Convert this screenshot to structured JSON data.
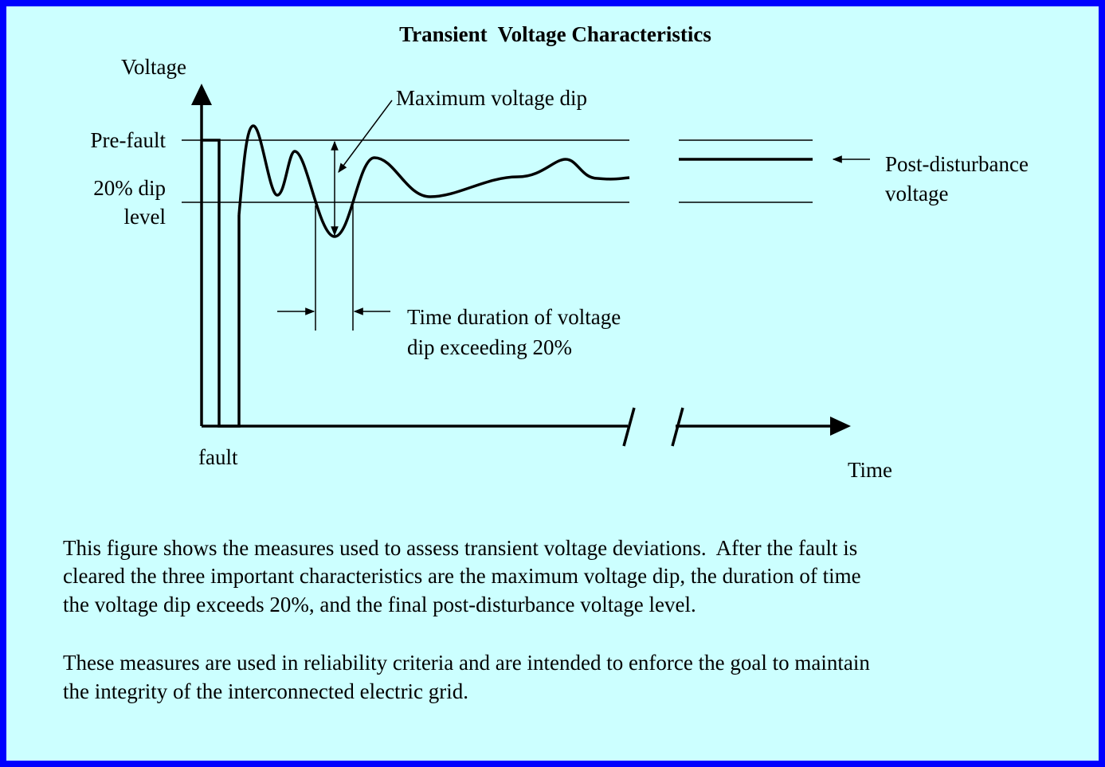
{
  "title": "Transient  Voltage Characteristics",
  "diagram": {
    "y_axis_label": "Voltage",
    "x_axis_label": "Time",
    "pre_fault_label": "Pre-fault",
    "dip_level_label": [
      "20% dip",
      "level"
    ],
    "max_dip_label": "Maximum voltage dip",
    "post_disturbance_label": [
      "Post-disturbance",
      "voltage"
    ],
    "duration_label": [
      "Time duration of voltage",
      "dip exceeding 20%"
    ],
    "fault_label": "fault"
  },
  "paragraphs": [
    [
      "This figure shows the measures used to assess transient voltage deviations.  After the fault is",
      "cleared the three important characteristics are the maximum voltage dip, the duration of time",
      "the voltage dip exceeds 20%, and the final post-disturbance voltage level."
    ],
    [
      "These measures are used in reliability criteria and are intended to enforce the goal to maintain",
      "the integrity of the interconnected electric grid."
    ]
  ]
}
